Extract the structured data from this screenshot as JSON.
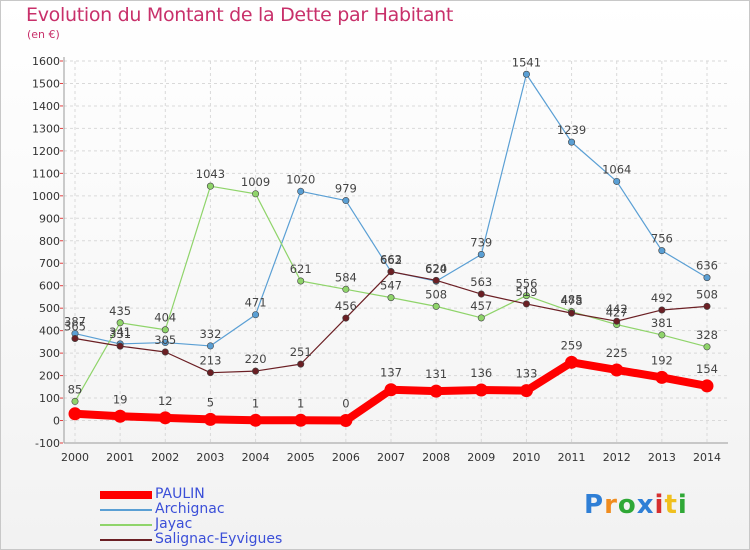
{
  "title": "Evolution du Montant de la Dette par Habitant",
  "subtitle": "(en €)",
  "logo": {
    "letters": [
      "P",
      "r",
      "o",
      "x",
      "i",
      "t",
      "i"
    ],
    "colors": [
      "#2f7fd6",
      "#f08c1e",
      "#2fa836",
      "#2f7fd6",
      "#d62f2f",
      "#f0c01e",
      "#2fa836"
    ]
  },
  "chart_data": {
    "type": "line",
    "x": [
      "2000",
      "2001",
      "2002",
      "2003",
      "2004",
      "2005",
      "2006",
      "2007",
      "2008",
      "2009",
      "2010",
      "2011",
      "2012",
      "2013",
      "2014"
    ],
    "ylim": [
      -100,
      1600
    ],
    "yticks": [
      "-100",
      "0",
      "100",
      "200",
      "300",
      "400",
      "500",
      "600",
      "700",
      "800",
      "900",
      "1000",
      "1100",
      "1200",
      "1300",
      "1400",
      "1500",
      "1600"
    ],
    "grid": true,
    "legend_position": "bottom-left",
    "series": [
      {
        "name": "Archignac",
        "color": "#5a9fd4",
        "width": 1.2,
        "values": [
          387,
          341,
          347,
          332,
          471,
          1020,
          979,
          663,
          620,
          739,
          1541,
          1239,
          1064,
          756,
          636
        ],
        "labels": [
          "387",
          "341",
          "",
          "332",
          "471",
          "1020",
          "979",
          "663",
          "620",
          "739",
          "1541",
          "1239",
          "1064",
          "756",
          "636"
        ]
      },
      {
        "name": "Jayac",
        "color": "#8fd46a",
        "width": 1.2,
        "values": [
          85,
          435,
          404,
          1043,
          1009,
          621,
          584,
          547,
          508,
          457,
          556,
          485,
          427,
          381,
          328
        ],
        "labels": [
          "85",
          "435",
          "404",
          "1043",
          "1009",
          "621",
          "584",
          "547",
          "508",
          "457",
          "556",
          "485",
          "427",
          "381",
          "328"
        ]
      },
      {
        "name": "Salignac-Eyvigues",
        "color": "#6b1f24",
        "width": 1.2,
        "values": [
          365,
          331,
          305,
          213,
          220,
          251,
          456,
          662,
          624,
          563,
          519,
          478,
          442,
          492,
          508
        ],
        "labels": [
          "365",
          "331",
          "305",
          "213",
          "220",
          "251",
          "456",
          "662",
          "624",
          "563",
          "519",
          "478",
          "442",
          "492",
          "508"
        ]
      },
      {
        "name": "PAULIN",
        "color": "#ff0000",
        "width": 8,
        "values": [
          30,
          19,
          12,
          5,
          1,
          1,
          0,
          137,
          131,
          136,
          133,
          259,
          225,
          192,
          154
        ],
        "labels": [
          "",
          "19",
          "12",
          "5",
          "1",
          "1",
          "0",
          "137",
          "131",
          "136",
          "133",
          "259",
          "225",
          "192",
          "154"
        ]
      }
    ],
    "legend_order": [
      "PAULIN",
      "Archignac",
      "Jayac",
      "Salignac-Eyvigues"
    ]
  }
}
